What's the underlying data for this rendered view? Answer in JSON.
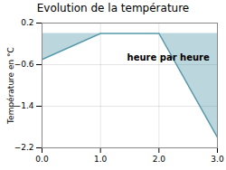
{
  "chart_data": {
    "type": "area",
    "title": "Evolution de la température",
    "xlabel": "heure par heure",
    "ylabel": "Température en °C",
    "x": [
      0,
      1,
      2,
      3
    ],
    "values": [
      -0.5,
      0.0,
      0.0,
      -2.0
    ],
    "color": "#5599aa",
    "xlim": [
      0,
      3
    ],
    "ylim": [
      -2.2,
      0.2
    ],
    "xticks": [
      0,
      1,
      2,
      3
    ],
    "yticks": [
      0.2,
      -0.6,
      -1.4,
      -2.2
    ],
    "grid": true
  }
}
